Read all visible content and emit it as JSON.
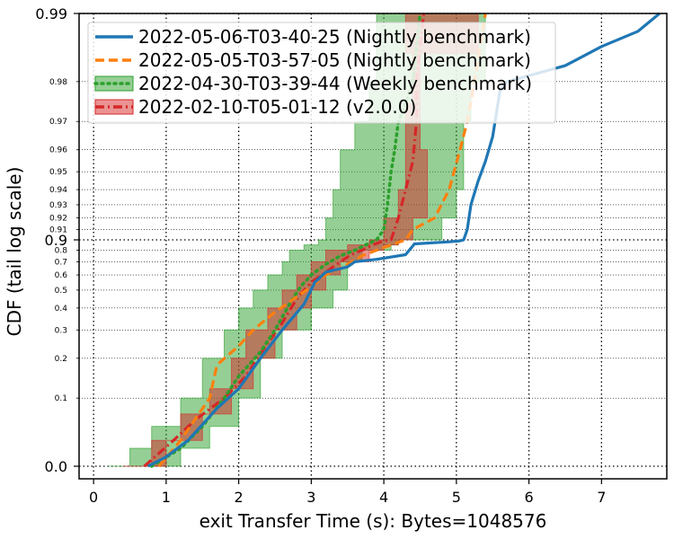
{
  "chart_data": {
    "type": "line",
    "title": "",
    "xlabel": "exit Transfer Time (s): Bytes=1048576",
    "ylabel": "CDF (tail log scale)",
    "x_scale": "linear",
    "y_scale": "tail-log",
    "xlim": [
      -0.2,
      7.9
    ],
    "ylim": [
      0.0,
      0.99
    ],
    "grid": true,
    "legend_position": "top-left",
    "x_ticks": [
      "0",
      "1",
      "2",
      "3",
      "4",
      "5",
      "6",
      "7"
    ],
    "y_major_ticks": [
      "0.0",
      "0.9",
      "0.99"
    ],
    "y_minor_ticks": [
      "0.1",
      "0.2",
      "0.3",
      "0.4",
      "0.5",
      "0.6",
      "0.7",
      "0.8",
      "0.91",
      "0.92",
      "0.93",
      "0.94",
      "0.95",
      "0.96",
      "0.97",
      "0.98"
    ],
    "series": [
      {
        "name": "2022-05-06-T03-40-25 (Nightly benchmark)",
        "style": "solid",
        "color": "#1f77b4",
        "points": [
          [
            0.75,
            0.0
          ],
          [
            1.0,
            0.01
          ],
          [
            1.3,
            0.03
          ],
          [
            1.7,
            0.08
          ],
          [
            2.0,
            0.12
          ],
          [
            2.3,
            0.2
          ],
          [
            2.6,
            0.3
          ],
          [
            2.9,
            0.42
          ],
          [
            3.05,
            0.55
          ],
          [
            3.2,
            0.62
          ],
          [
            3.5,
            0.66
          ],
          [
            3.6,
            0.7
          ],
          [
            3.9,
            0.72
          ],
          [
            4.3,
            0.76
          ],
          [
            4.35,
            0.8
          ],
          [
            4.4,
            0.84
          ],
          [
            4.42,
            0.86
          ],
          [
            4.9,
            0.88
          ],
          [
            5.05,
            0.89
          ],
          [
            5.1,
            0.9
          ],
          [
            5.15,
            0.91
          ],
          [
            5.2,
            0.93
          ],
          [
            5.3,
            0.945
          ],
          [
            5.4,
            0.955
          ],
          [
            5.5,
            0.965
          ],
          [
            5.6,
            0.978
          ],
          [
            5.7,
            0.98
          ],
          [
            6.5,
            0.983
          ],
          [
            7.0,
            0.986
          ],
          [
            7.5,
            0.988
          ],
          [
            7.8,
            0.99
          ]
        ]
      },
      {
        "name": "2022-05-05-T03-57-05 (Nightly benchmark)",
        "style": "dashed",
        "color": "#ff7f0e",
        "points": [
          [
            0.9,
            0.0
          ],
          [
            1.2,
            0.03
          ],
          [
            1.6,
            0.1
          ],
          [
            1.7,
            0.18
          ],
          [
            2.0,
            0.24
          ],
          [
            2.2,
            0.3
          ],
          [
            2.5,
            0.38
          ],
          [
            2.8,
            0.46
          ],
          [
            3.0,
            0.52
          ],
          [
            3.2,
            0.6
          ],
          [
            3.5,
            0.68
          ],
          [
            3.7,
            0.75
          ],
          [
            3.9,
            0.8
          ],
          [
            4.1,
            0.85
          ],
          [
            4.3,
            0.9
          ],
          [
            4.4,
            0.91
          ],
          [
            4.7,
            0.92
          ],
          [
            4.9,
            0.94
          ],
          [
            5.05,
            0.96
          ],
          [
            5.15,
            0.97
          ],
          [
            5.25,
            0.98
          ],
          [
            5.4,
            0.99
          ]
        ]
      },
      {
        "name": "2022-04-30-T03-39-44 (Weekly benchmark)",
        "style": "dotted",
        "color": "#2ca02c",
        "points": [
          [
            0.8,
            0.0
          ],
          [
            1.2,
            0.02
          ],
          [
            1.5,
            0.05
          ],
          [
            1.8,
            0.1
          ],
          [
            2.0,
            0.15
          ],
          [
            2.3,
            0.22
          ],
          [
            2.5,
            0.3
          ],
          [
            2.7,
            0.42
          ],
          [
            2.85,
            0.52
          ],
          [
            3.0,
            0.6
          ],
          [
            3.2,
            0.68
          ],
          [
            3.4,
            0.75
          ],
          [
            3.6,
            0.8
          ],
          [
            3.75,
            0.85
          ],
          [
            3.9,
            0.9
          ],
          [
            4.0,
            0.91
          ],
          [
            4.05,
            0.93
          ],
          [
            4.1,
            0.95
          ],
          [
            4.15,
            0.96
          ],
          [
            4.2,
            0.97
          ],
          [
            4.3,
            0.975
          ],
          [
            4.4,
            0.98
          ],
          [
            4.5,
            0.99
          ]
        ]
      },
      {
        "name": "2022-02-10-T05-01-12 (v2.0.0)",
        "style": "dashdot",
        "color": "#d62728",
        "points": [
          [
            0.7,
            0.0
          ],
          [
            1.1,
            0.03
          ],
          [
            1.4,
            0.06
          ],
          [
            1.8,
            0.1
          ],
          [
            2.1,
            0.15
          ],
          [
            2.4,
            0.25
          ],
          [
            2.6,
            0.33
          ],
          [
            2.8,
            0.45
          ],
          [
            3.0,
            0.55
          ],
          [
            3.2,
            0.62
          ],
          [
            3.4,
            0.7
          ],
          [
            3.55,
            0.76
          ],
          [
            3.7,
            0.8
          ],
          [
            3.85,
            0.85
          ],
          [
            4.0,
            0.89
          ],
          [
            4.1,
            0.9
          ],
          [
            4.2,
            0.92
          ],
          [
            4.3,
            0.94
          ],
          [
            4.4,
            0.955
          ],
          [
            4.45,
            0.97
          ],
          [
            4.45,
            0.98
          ],
          [
            4.55,
            0.99
          ]
        ]
      }
    ],
    "bands": [
      {
        "series": "2022-04-30-T03-39-44 (Weekly benchmark)",
        "color": "#2ca02c",
        "points": [
          [
            0.2,
            0.0,
            1.2
          ],
          [
            0.5,
            0.02,
            1.6
          ],
          [
            0.8,
            0.05,
            2.0
          ],
          [
            1.2,
            0.1,
            2.3
          ],
          [
            1.5,
            0.2,
            2.6
          ],
          [
            1.8,
            0.3,
            3.0
          ],
          [
            2.0,
            0.4,
            3.3
          ],
          [
            2.2,
            0.5,
            3.5
          ],
          [
            2.4,
            0.6,
            3.5
          ],
          [
            2.6,
            0.7,
            3.7
          ],
          [
            2.7,
            0.8,
            4.1
          ],
          [
            2.9,
            0.85,
            4.2
          ],
          [
            3.1,
            0.9,
            4.8
          ],
          [
            3.2,
            0.92,
            5.0
          ],
          [
            3.3,
            0.94,
            5.1
          ],
          [
            3.4,
            0.96,
            5.1
          ],
          [
            3.6,
            0.97,
            5.2
          ],
          [
            3.8,
            0.98,
            5.4
          ],
          [
            3.9,
            0.99,
            5.5
          ]
        ]
      },
      {
        "series": "2022-02-10-T05-01-12 (v2.0.0)",
        "color": "#d62728",
        "points": [
          [
            0.4,
            0.0,
            1.0
          ],
          [
            0.8,
            0.03,
            1.5
          ],
          [
            1.2,
            0.07,
            1.9
          ],
          [
            1.6,
            0.12,
            2.2
          ],
          [
            1.9,
            0.2,
            2.5
          ],
          [
            2.1,
            0.3,
            2.8
          ],
          [
            2.4,
            0.4,
            3.0
          ],
          [
            2.6,
            0.5,
            3.2
          ],
          [
            2.8,
            0.6,
            3.4
          ],
          [
            3.0,
            0.7,
            3.8
          ],
          [
            3.2,
            0.8,
            4.0
          ],
          [
            3.5,
            0.85,
            4.2
          ],
          [
            3.8,
            0.9,
            4.4
          ],
          [
            4.0,
            0.92,
            4.6
          ],
          [
            4.2,
            0.94,
            4.6
          ],
          [
            4.3,
            0.96,
            4.5
          ],
          [
            4.3,
            0.975,
            4.5
          ],
          [
            4.4,
            0.985,
            5.3
          ],
          [
            4.3,
            0.99,
            5.4
          ]
        ]
      }
    ]
  }
}
